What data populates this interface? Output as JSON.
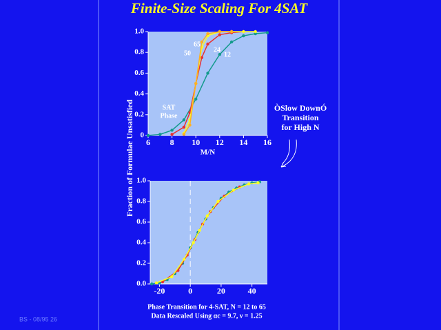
{
  "title": "Finite-Size Scaling For 4SAT",
  "y_label": "Fraction of Formulae Unsatisfied",
  "note": [
    "ÒSlow DownÓ",
    "Transition",
    "for High N"
  ],
  "caption": [
    "Phase Transition for 4-SAT, N = 12 to 65",
    "Data Rescaled Using αc = 9.7, ν = 1.25"
  ],
  "footer": "BS - 08/95 26",
  "chart_data": [
    {
      "type": "line",
      "x_label": "M/N",
      "xlim": [
        6,
        16
      ],
      "xticks": [
        6,
        8,
        10,
        12,
        14,
        16
      ],
      "ylim": [
        0,
        1
      ],
      "yticks": [
        0,
        0.2,
        0.4,
        0.6,
        0.8,
        {
          "value": 1,
          "label": "1.0"
        }
      ],
      "annotations": [
        "SAT",
        "Phase"
      ],
      "series": [
        {
          "name": "12",
          "color": "#139a8c",
          "x": [
            6,
            7,
            8,
            9,
            10,
            11,
            12,
            13,
            14,
            15,
            16
          ],
          "values": [
            0,
            0.01,
            0.05,
            0.15,
            0.35,
            0.6,
            0.78,
            0.9,
            0.96,
            0.98,
            0.99
          ]
        },
        {
          "name": "24",
          "color": "#e83030",
          "x": [
            8,
            9,
            9.5,
            10,
            10.5,
            11,
            12,
            13,
            14
          ],
          "values": [
            0.01,
            0.08,
            0.22,
            0.5,
            0.75,
            0.88,
            0.97,
            0.99,
            1
          ]
        },
        {
          "name": "50",
          "color": "#ffff20",
          "x": [
            9,
            9.5,
            10,
            10.5,
            11,
            12,
            13,
            14,
            15
          ],
          "values": [
            0.02,
            0.15,
            0.5,
            0.85,
            0.96,
            1,
            1,
            1,
            1
          ]
        },
        {
          "name": "65",
          "color": "#ffb020",
          "x": [
            9,
            9.5,
            10,
            10.5,
            11,
            12,
            13
          ],
          "values": [
            0.01,
            0.1,
            0.5,
            0.9,
            0.98,
            1,
            1
          ]
        }
      ]
    },
    {
      "type": "line",
      "xlim": [
        -26,
        50
      ],
      "xticks": [
        -20,
        0,
        20,
        40
      ],
      "ylim": [
        0,
        1
      ],
      "yticks": [
        {
          "value": 0,
          "label": "0.0"
        },
        0.2,
        0.4,
        0.6,
        0.8,
        {
          "value": 1,
          "label": "1.0"
        }
      ],
      "series": [
        {
          "color": "#139a8c",
          "x": [
            -25,
            -20,
            -15,
            -10,
            -5,
            0,
            5,
            10,
            15,
            20,
            25,
            30,
            35,
            40,
            45
          ],
          "values": [
            0,
            0.01,
            0.04,
            0.1,
            0.2,
            0.35,
            0.5,
            0.63,
            0.74,
            0.83,
            0.89,
            0.93,
            0.96,
            0.98,
            0.99
          ]
        },
        {
          "color": "#e83030",
          "x": [
            -18,
            -8,
            -2,
            3,
            8,
            13,
            22,
            32
          ],
          "values": [
            0.02,
            0.13,
            0.28,
            0.43,
            0.58,
            0.7,
            0.85,
            0.94
          ]
        },
        {
          "color": "#ffff20",
          "x": [
            -22,
            -12,
            -4,
            2,
            6,
            11,
            18,
            28,
            38,
            44
          ],
          "values": [
            0.01,
            0.07,
            0.24,
            0.4,
            0.52,
            0.66,
            0.8,
            0.91,
            0.97,
            0.98
          ]
        }
      ]
    }
  ]
}
